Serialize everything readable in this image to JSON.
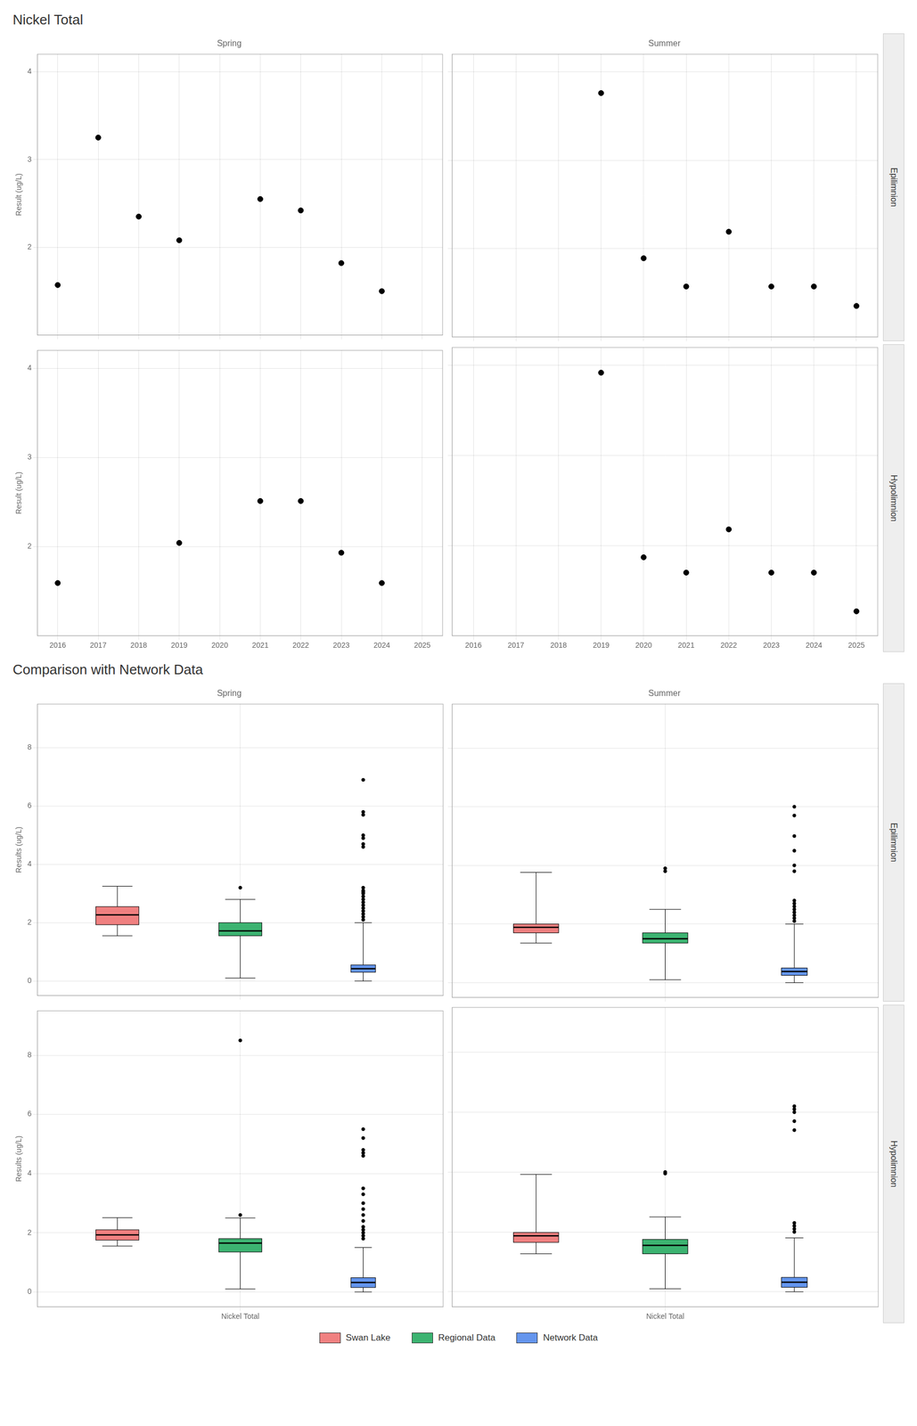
{
  "chart_data": [
    {
      "type": "scatter",
      "title": "Nickel Total",
      "ylabel": "Result (ug/L)",
      "xlim": [
        2015.5,
        2025.5
      ],
      "xticks": [
        2016,
        2017,
        2018,
        2019,
        2020,
        2021,
        2022,
        2023,
        2024,
        2025
      ],
      "ylim": [
        1.0,
        4.2
      ],
      "yticks": [
        2,
        3,
        4
      ],
      "grid": true,
      "color": "#000000",
      "marker": "circle",
      "panels": [
        {
          "title": "Spring",
          "x": [
            2016,
            2017,
            2018,
            2019,
            2021,
            2022,
            2023,
            2024
          ],
          "values": [
            1.57,
            3.25,
            2.35,
            2.08,
            2.55,
            2.42,
            1.82,
            1.5
          ],
          "tick_labels": "y"
        },
        {
          "title": "Summer",
          "annotations": [
            "Epilimnion"
          ],
          "x": [
            2019,
            2020,
            2021,
            2022,
            2023,
            2024,
            2025
          ],
          "values": [
            3.76,
            1.89,
            1.57,
            2.19,
            1.57,
            1.57,
            1.35
          ],
          "tick_labels": false
        },
        {
          "x": [
            2016,
            2019,
            2021,
            2022,
            2023,
            2024
          ],
          "values": [
            1.59,
            2.04,
            2.51,
            2.51,
            1.93,
            1.59
          ],
          "tick_labels": true
        },
        {
          "annotations": [
            "Hypolimnion"
          ],
          "x": [
            2019,
            2020,
            2021,
            2022,
            2023,
            2024,
            2025
          ],
          "values": [
            3.92,
            1.87,
            1.7,
            2.18,
            1.7,
            1.7,
            1.27
          ],
          "tick_labels": "x"
        }
      ]
    },
    {
      "type": "box",
      "title": "Comparison with Network Data",
      "ylabel": "Results (ug/L)",
      "categories": [
        "Nickel Total"
      ],
      "ylim": [
        -0.5,
        9.5
      ],
      "yticks": [
        0,
        2,
        4,
        6,
        8
      ],
      "grid": true,
      "legend": "bottom",
      "series": [
        {
          "name": "Swan Lake",
          "color": "#F08080"
        },
        {
          "name": "Regional Data",
          "color": "#3CB371"
        },
        {
          "name": "Network Data",
          "color": "#6495ED"
        }
      ],
      "panels": [
        {
          "title": "Spring",
          "tick_labels": "y",
          "values": [
            {
              "q1": 1.93,
              "median": 2.27,
              "q3": 2.55,
              "whisker_low": 1.55,
              "whisker_high": 3.25,
              "outliers": []
            },
            {
              "q1": 1.55,
              "median": 1.72,
              "q3": 2.0,
              "whisker_low": 0.1,
              "whisker_high": 2.8,
              "outliers": [
                3.2
              ]
            },
            {
              "q1": 0.3,
              "median": 0.42,
              "q3": 0.55,
              "whisker_low": 0.0,
              "whisker_high": 2.0,
              "outliers": [
                2.1,
                2.2,
                2.3,
                2.4,
                2.5,
                2.6,
                2.7,
                2.8,
                2.9,
                3.0,
                3.05,
                3.1,
                3.2,
                4.6,
                4.7,
                4.9,
                5.0,
                5.7,
                5.8,
                6.9
              ]
            }
          ]
        },
        {
          "title": "Summer",
          "annotations": [
            "Epilimnion"
          ],
          "tick_labels": false,
          "values": [
            {
              "q1": 1.7,
              "median": 1.89,
              "q3": 2.0,
              "whisker_low": 1.35,
              "whisker_high": 3.76,
              "outliers": []
            },
            {
              "q1": 1.35,
              "median": 1.5,
              "q3": 1.7,
              "whisker_low": 0.1,
              "whisker_high": 2.5,
              "outliers": [
                3.8,
                3.9
              ]
            },
            {
              "q1": 0.25,
              "median": 0.38,
              "q3": 0.5,
              "whisker_low": 0.0,
              "whisker_high": 2.0,
              "outliers": [
                2.1,
                2.2,
                2.3,
                2.4,
                2.5,
                2.6,
                2.7,
                2.8,
                3.8,
                4.0,
                4.5,
                5.0,
                5.7,
                6.0
              ]
            }
          ]
        },
        {
          "tick_labels": true,
          "values": [
            {
              "q1": 1.75,
              "median": 1.93,
              "q3": 2.1,
              "whisker_low": 1.55,
              "whisker_high": 2.51,
              "outliers": []
            },
            {
              "q1": 1.35,
              "median": 1.65,
              "q3": 1.8,
              "whisker_low": 0.1,
              "whisker_high": 2.5,
              "outliers": [
                2.6,
                8.5
              ]
            },
            {
              "q1": 0.15,
              "median": 0.32,
              "q3": 0.48,
              "whisker_low": 0.0,
              "whisker_high": 1.5,
              "outliers": [
                1.8,
                1.9,
                2.0,
                2.1,
                2.2,
                2.4,
                2.6,
                2.8,
                3.0,
                3.3,
                3.5,
                4.6,
                4.7,
                4.8,
                5.2,
                5.5
              ]
            }
          ]
        },
        {
          "annotations": [
            "Hypolimnion"
          ],
          "tick_labels": "x",
          "values": [
            {
              "q1": 1.65,
              "median": 1.87,
              "q3": 1.98,
              "whisker_low": 1.27,
              "whisker_high": 3.92,
              "outliers": []
            },
            {
              "q1": 1.27,
              "median": 1.55,
              "q3": 1.75,
              "whisker_low": 0.1,
              "whisker_high": 2.5,
              "outliers": [
                3.95,
                4.0
              ]
            },
            {
              "q1": 0.15,
              "median": 0.32,
              "q3": 0.48,
              "whisker_low": 0.0,
              "whisker_high": 1.8,
              "outliers": [
                2.0,
                2.1,
                2.2,
                2.3,
                5.4,
                5.7,
                6.0,
                6.1,
                6.2
              ]
            }
          ]
        }
      ]
    }
  ]
}
